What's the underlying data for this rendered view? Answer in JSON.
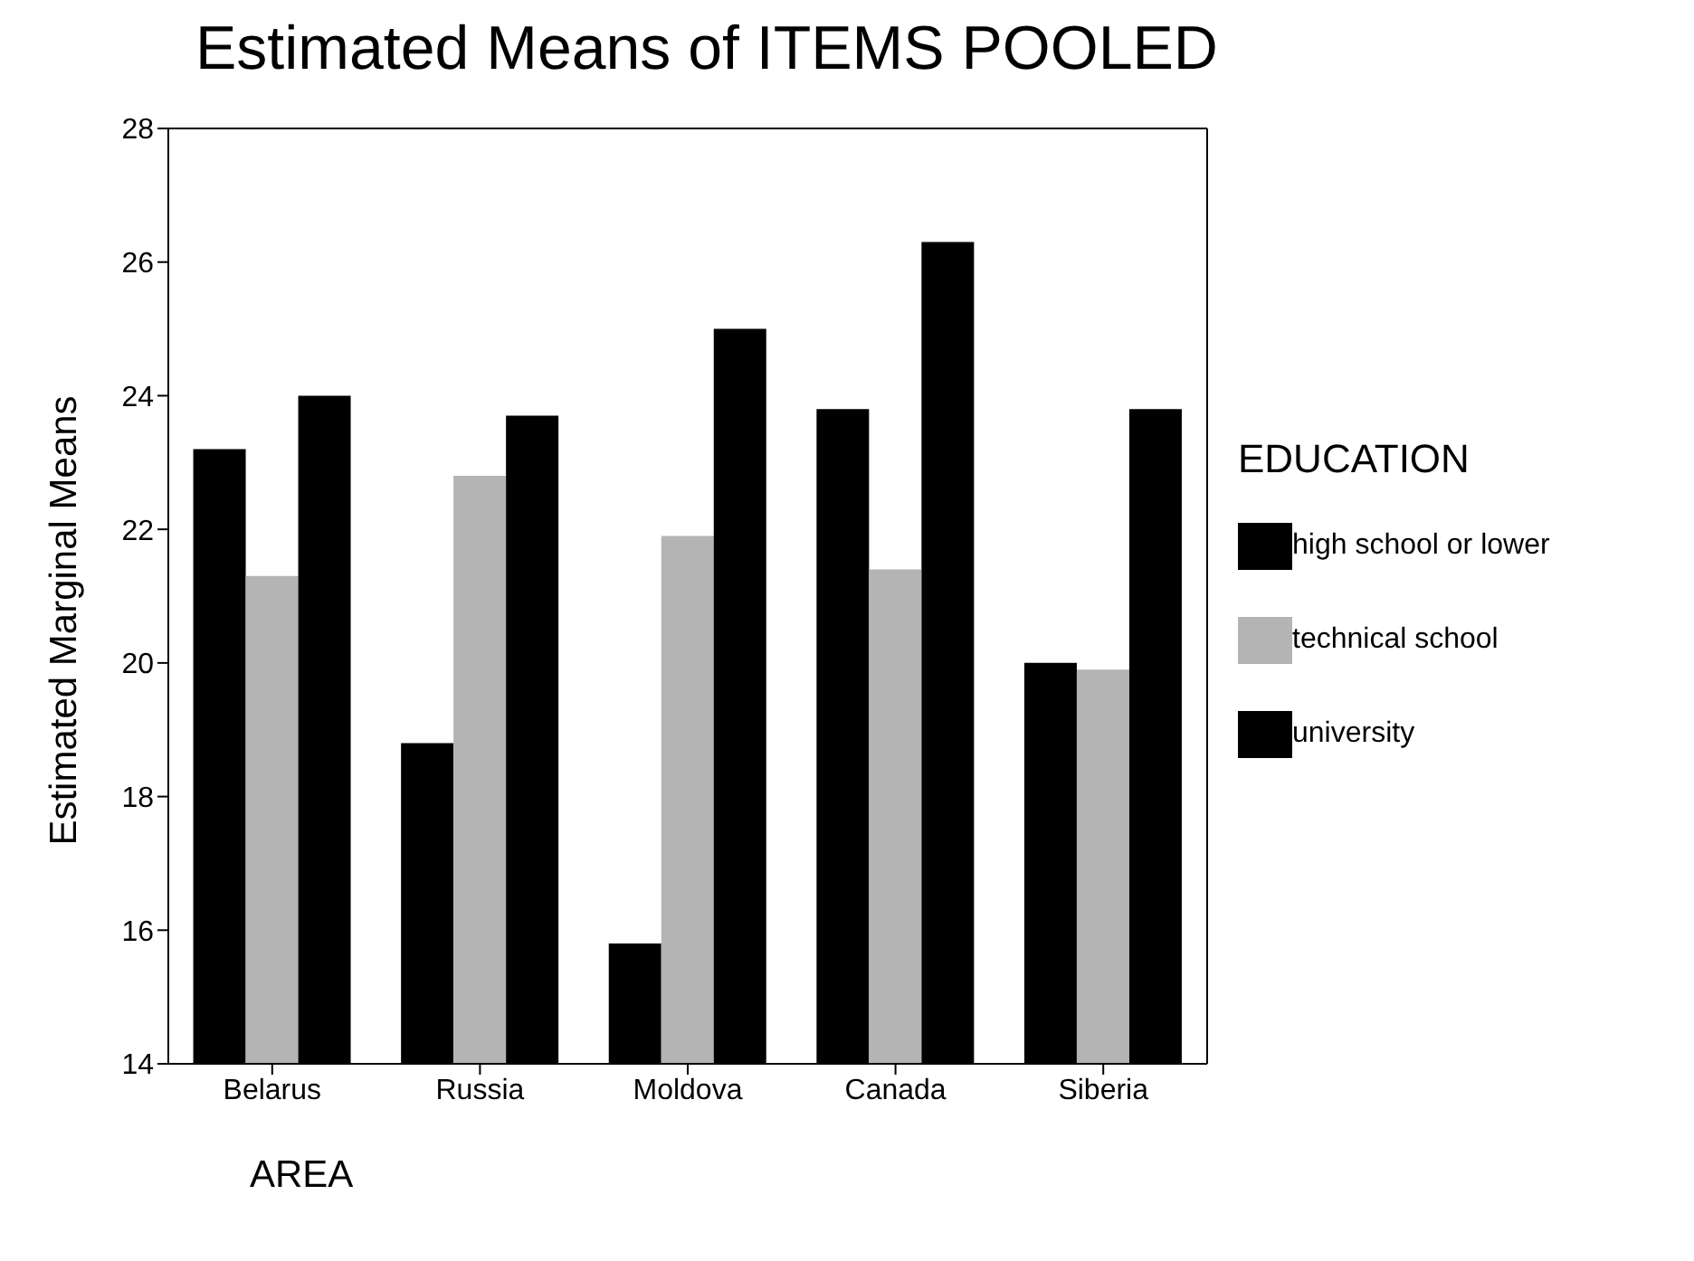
{
  "chart_data": {
    "type": "bar",
    "title": "Estimated Means of ITEMS POOLED",
    "xlabel": "AREA",
    "ylabel": "Estimated Marginal Means",
    "legend_title": "EDUCATION",
    "categories": [
      "Belarus",
      "Russia",
      "Moldova",
      "Canada",
      "Siberia"
    ],
    "series": [
      {
        "name": "high school or lower",
        "color": "#000000",
        "values": [
          23.2,
          18.8,
          15.8,
          23.8,
          20.0
        ]
      },
      {
        "name": "technical school",
        "color": "#b4b4b4",
        "values": [
          21.3,
          22.8,
          21.9,
          21.4,
          19.9
        ]
      },
      {
        "name": "university",
        "color": "#000000",
        "values": [
          24.0,
          23.7,
          25.0,
          26.3,
          23.8
        ]
      }
    ],
    "ylim": [
      14,
      28
    ],
    "yticks": [
      14,
      16,
      18,
      20,
      22,
      24,
      26,
      28
    ],
    "grid": false,
    "legend": "right"
  }
}
